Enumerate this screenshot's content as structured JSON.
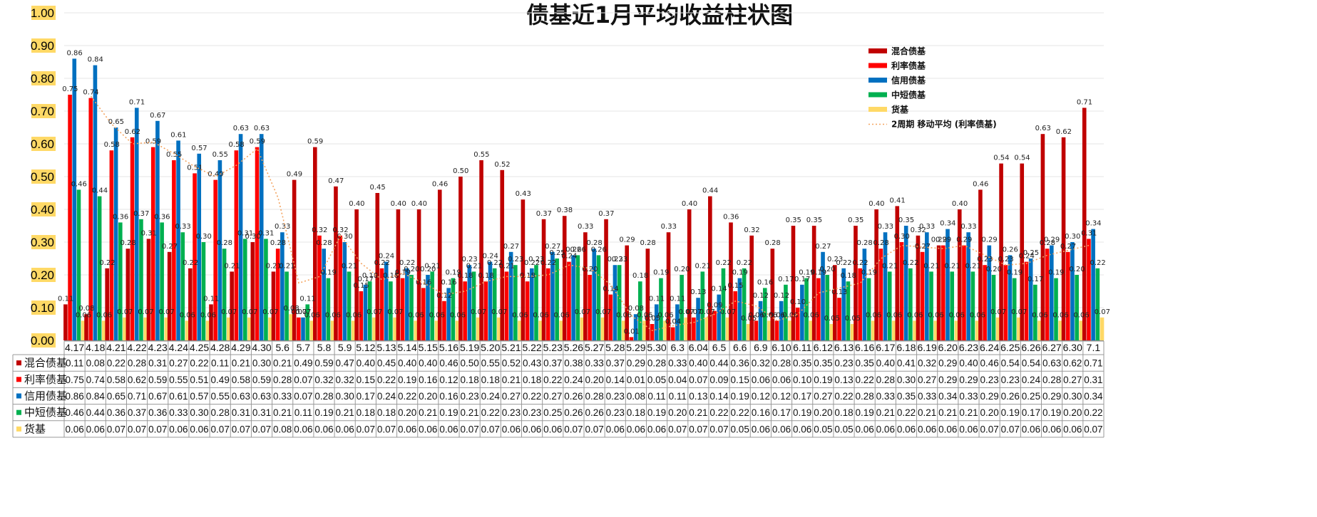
{
  "chart_data": {
    "type": "bar",
    "title": "债基近1月平均收益柱状图",
    "ylim": [
      0,
      1.0
    ],
    "yticks": [
      "0.00",
      "0.10",
      "0.20",
      "0.30",
      "0.40",
      "0.50",
      "0.60",
      "0.70",
      "0.80",
      "0.90",
      "1.00"
    ],
    "grid": true,
    "legend_position": "top-right",
    "categories": [
      "4.17",
      "4.18",
      "4.21",
      "4.22",
      "4.23",
      "4.24",
      "4.25",
      "4.28",
      "4.29",
      "4.30",
      "5.6",
      "5.7",
      "5.8",
      "5.9",
      "5.12",
      "5.13",
      "5.14",
      "5.15",
      "5.16",
      "5.19",
      "5.20",
      "5.21",
      "5.22",
      "5.23",
      "5.26",
      "5.27",
      "5.28",
      "5.29",
      "5.30",
      "6.3",
      "6.04",
      "6.5",
      "6.6",
      "6.9",
      "6.10",
      "6.11",
      "6.12",
      "6.13",
      "6.16",
      "6.17",
      "6.18",
      "6.19",
      "6.20",
      "6.23",
      "6.24",
      "6.25",
      "6.26",
      "6.27",
      "6.30",
      "7.1"
    ],
    "series": [
      {
        "name": "混合债基",
        "color": "#C00000",
        "values": [
          "0.11",
          "0.08",
          "0.22",
          "0.28",
          "0.31",
          "0.27",
          "0.22",
          "0.11",
          "0.21",
          "0.30",
          "0.21",
          "0.49",
          "0.59",
          "0.47",
          "0.40",
          "0.45",
          "0.40",
          "0.40",
          "0.46",
          "0.50",
          "0.55",
          "0.52",
          "0.43",
          "0.37",
          "0.38",
          "0.33",
          "0.37",
          "0.29",
          "0.28",
          "0.33",
          "0.40",
          "0.44",
          "0.36",
          "0.32",
          "0.28",
          "0.35",
          "0.35",
          "0.23",
          "0.35",
          "0.40",
          "0.41",
          "0.32",
          "0.29",
          "0.40",
          "0.46",
          "0.54",
          "0.54",
          "0.63",
          "0.62",
          "0.71"
        ]
      },
      {
        "name": "利率债基",
        "color": "#FF0000",
        "values": [
          "0.75",
          "0.74",
          "0.58",
          "0.62",
          "0.59",
          "0.55",
          "0.51",
          "0.49",
          "0.58",
          "0.59",
          "0.28",
          "0.07",
          "0.32",
          "0.32",
          "0.15",
          "0.22",
          "0.19",
          "0.16",
          "0.12",
          "0.18",
          "0.18",
          "0.21",
          "0.18",
          "0.22",
          "0.24",
          "0.20",
          "0.14",
          "0.01",
          "0.05",
          "0.04",
          "0.07",
          "0.09",
          "0.15",
          "0.06",
          "0.06",
          "0.10",
          "0.19",
          "0.13",
          "0.22",
          "0.28",
          "0.30",
          "0.27",
          "0.29",
          "0.29",
          "0.23",
          "0.23",
          "0.24",
          "0.28",
          "0.27",
          "0.31"
        ]
      },
      {
        "name": "信用债基",
        "color": "#0070C0",
        "values": [
          "0.86",
          "0.84",
          "0.65",
          "0.71",
          "0.67",
          "0.61",
          "0.57",
          "0.55",
          "0.63",
          "0.63",
          "0.33",
          "0.07",
          "0.28",
          "0.30",
          "0.17",
          "0.24",
          "0.22",
          "0.20",
          "0.16",
          "0.23",
          "0.24",
          "0.27",
          "0.22",
          "0.27",
          "0.26",
          "0.28",
          "0.23",
          "0.08",
          "0.11",
          "0.11",
          "0.13",
          "0.14",
          "0.19",
          "0.12",
          "0.12",
          "0.17",
          "0.27",
          "0.22",
          "0.28",
          "0.33",
          "0.35",
          "0.33",
          "0.34",
          "0.33",
          "0.29",
          "0.26",
          "0.25",
          "0.29",
          "0.30",
          "0.34"
        ]
      },
      {
        "name": "中短债基",
        "color": "#00B050",
        "values": [
          "0.46",
          "0.44",
          "0.36",
          "0.37",
          "0.36",
          "0.33",
          "0.30",
          "0.28",
          "0.31",
          "0.31",
          "0.21",
          "0.11",
          "0.19",
          "0.21",
          "0.18",
          "0.18",
          "0.20",
          "0.21",
          "0.19",
          "0.21",
          "0.22",
          "0.23",
          "0.23",
          "0.25",
          "0.26",
          "0.26",
          "0.23",
          "0.18",
          "0.19",
          "0.20",
          "0.21",
          "0.22",
          "0.22",
          "0.16",
          "0.17",
          "0.19",
          "0.20",
          "0.18",
          "0.19",
          "0.21",
          "0.22",
          "0.21",
          "0.21",
          "0.21",
          "0.20",
          "0.19",
          "0.17",
          "0.19",
          "0.20",
          "0.22"
        ]
      },
      {
        "name": "货基",
        "color": "#FFD966",
        "values": [
          "0.06",
          "0.06",
          "0.07",
          "0.07",
          "0.07",
          "0.06",
          "0.06",
          "0.07",
          "0.07",
          "0.07",
          "0.08",
          "0.06",
          "0.06",
          "0.06",
          "0.07",
          "0.07",
          "0.06",
          "0.06",
          "0.06",
          "0.07",
          "0.07",
          "0.06",
          "0.06",
          "0.06",
          "0.07",
          "0.07",
          "0.06",
          "0.06",
          "0.06",
          "0.07",
          "0.07",
          "0.07",
          "0.05",
          "0.06",
          "0.06",
          "0.06",
          "0.05",
          "0.05",
          "0.06",
          "0.06",
          "0.06",
          "0.06",
          "0.06",
          "0.06",
          "0.07",
          "0.07",
          "0.06",
          "0.06",
          "0.06",
          "0.07"
        ]
      }
    ],
    "trendline": {
      "name": "2周期 移动平均 (利率债基)",
      "color": "#F4A460"
    }
  }
}
